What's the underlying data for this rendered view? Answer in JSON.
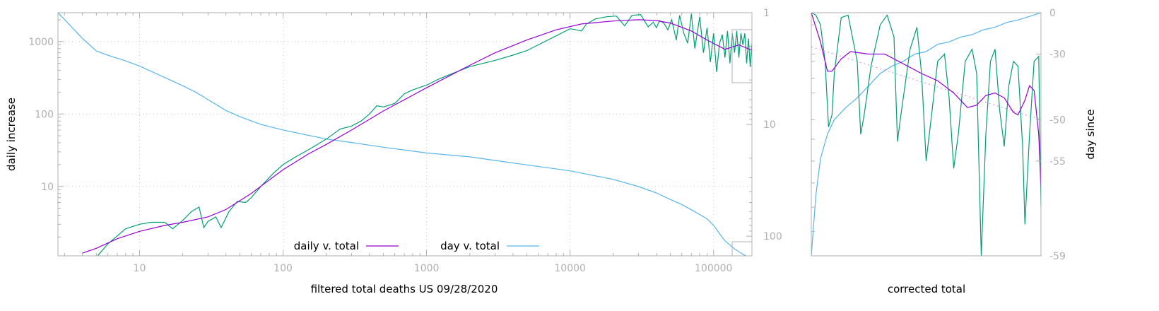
{
  "chart_data": [
    {
      "type": "line",
      "xlabel": "filtered total deaths US 09/28/2020",
      "ylabel": "daily increase",
      "y2label": "",
      "x_scale": "log",
      "y_scale": "log",
      "y2_scale": "log-reversed",
      "xlim": [
        2.7,
        185000
      ],
      "ylim": [
        1.1,
        2500
      ],
      "y2lim": [
        1,
        150
      ],
      "x_ticks": [
        "10",
        "100",
        "1000",
        "10000",
        "100000"
      ],
      "y_ticks": [
        "10",
        "100",
        "1000"
      ],
      "y2_ticks": [
        "1",
        "10",
        "100"
      ],
      "grid": true,
      "legend_position": "bottom-center",
      "series": [
        {
          "name": "daily v. total",
          "color": "#9400d3",
          "axis": "left",
          "x": [
            4,
            5,
            7,
            10,
            15,
            20,
            30,
            40,
            60,
            100,
            150,
            200,
            300,
            500,
            1000,
            2000,
            3000,
            5000,
            8000,
            12000,
            20000,
            30000,
            40000,
            50000,
            70000,
            90000,
            120000,
            150000,
            185000
          ],
          "y": [
            1.2,
            1.4,
            1.9,
            2.4,
            2.9,
            3.2,
            3.8,
            4.8,
            8,
            17,
            28,
            38,
            60,
            110,
            230,
            470,
            700,
            1050,
            1450,
            1750,
            1920,
            2000,
            1950,
            1800,
            1400,
            1050,
            780,
            900,
            760
          ]
        },
        {
          "name": "",
          "color": "#009e73",
          "axis": "left",
          "x": [
            4,
            5,
            6,
            8,
            10,
            12,
            15,
            17,
            20,
            23,
            26,
            28,
            30,
            34,
            37,
            42,
            48,
            55,
            60,
            70,
            85,
            100,
            120,
            150,
            200,
            250,
            300,
            350,
            400,
            450,
            500,
            600,
            700,
            800,
            1000,
            1200,
            1500,
            2000,
            3000,
            4000,
            5000,
            6000,
            7000,
            8000,
            9000,
            10000,
            11000,
            12000,
            13000,
            15000,
            18000,
            21000,
            24000,
            27000,
            31000,
            35000,
            38000,
            40000,
            42000,
            45000,
            48000,
            51000,
            55000,
            58000,
            62000,
            66000,
            70000,
            74000,
            80000,
            85000,
            90000,
            95000,
            100000,
            105000,
            110000,
            115000,
            120000,
            125000,
            130000,
            135000,
            140000,
            145000,
            150000,
            155000,
            160000,
            165000,
            170000,
            175000,
            180000,
            185000
          ],
          "y": [
            1.1,
            1.05,
            1.6,
            2.6,
            3,
            3.2,
            3.2,
            2.6,
            3.4,
            4.5,
            5.2,
            2.7,
            3.3,
            3.8,
            2.7,
            4.5,
            6.2,
            6,
            7,
            10,
            15,
            20,
            25,
            32,
            45,
            62,
            68,
            80,
            100,
            130,
            125,
            140,
            190,
            215,
            250,
            300,
            360,
            450,
            550,
            650,
            750,
            900,
            1050,
            1200,
            1350,
            1500,
            1450,
            1400,
            1750,
            2050,
            2200,
            2250,
            1650,
            2300,
            2350,
            1600,
            1850,
            1550,
            1950,
            1800,
            1450,
            2000,
            1050,
            2300,
            1300,
            950,
            2400,
            800,
            2200,
            700,
            1550,
            520,
            1300,
            380,
            950,
            1250,
            600,
            1400,
            500,
            1300,
            700,
            1400,
            600,
            1300,
            900,
            1300,
            500,
            1100,
            450,
            950
          ]
        },
        {
          "name": "day v. total",
          "color": "#56b4e9",
          "axis": "right",
          "x": [
            2.7,
            3,
            4,
            5,
            6,
            8,
            10,
            15,
            20,
            25,
            30,
            40,
            50,
            70,
            100,
            200,
            300,
            500,
            1000,
            2000,
            3000,
            5000,
            10000,
            20000,
            30000,
            40000,
            50000,
            60000,
            70000,
            80000,
            90000,
            100000,
            110000,
            120000,
            140000,
            160000,
            185000
          ],
          "y": [
            1,
            1.15,
            1.7,
            2.2,
            2.4,
            2.7,
            3,
            3.8,
            4.5,
            5.2,
            6,
            7.5,
            8.5,
            10,
            11.2,
            13.5,
            14.5,
            16,
            18,
            19.5,
            21,
            23,
            26,
            31,
            36,
            41,
            47,
            52,
            58,
            64,
            70,
            80,
            95,
            110,
            130,
            145,
            160
          ]
        }
      ]
    },
    {
      "type": "line",
      "xlabel": "corrected total",
      "ylabel": "",
      "y2label": "day since",
      "x_ticks": [],
      "y2_ticks": [
        "0",
        "-30",
        "-50",
        "-55",
        "-59"
      ],
      "y2_tick_pos": [
        0,
        0.17,
        0.44,
        0.61,
        1.0
      ],
      "series": [
        {
          "name": "",
          "color": "#9400d3",
          "points": [
            [
              0,
              0.0
            ],
            [
              0.04,
              0.12
            ],
            [
              0.07,
              0.24
            ],
            [
              0.09,
              0.24
            ],
            [
              0.13,
              0.19
            ],
            [
              0.17,
              0.16
            ],
            [
              0.25,
              0.17
            ],
            [
              0.32,
              0.17
            ],
            [
              0.4,
              0.21
            ],
            [
              0.48,
              0.25
            ],
            [
              0.55,
              0.28
            ],
            [
              0.62,
              0.33
            ],
            [
              0.68,
              0.39
            ],
            [
              0.72,
              0.38
            ],
            [
              0.76,
              0.34
            ],
            [
              0.8,
              0.33
            ],
            [
              0.84,
              0.35
            ],
            [
              0.88,
              0.41
            ],
            [
              0.9,
              0.42
            ],
            [
              0.93,
              0.36
            ],
            [
              0.95,
              0.3
            ],
            [
              0.97,
              0.32
            ],
            [
              0.99,
              0.5
            ],
            [
              1.0,
              0.72
            ]
          ]
        },
        {
          "name": "",
          "color": "#cc88ee",
          "dashed": true,
          "points": [
            [
              0,
              0.14
            ],
            [
              1.0,
              0.44
            ]
          ]
        },
        {
          "name": "",
          "color": "#009e73",
          "points": [
            [
              0,
              0.0
            ],
            [
              0.02,
              0.01
            ],
            [
              0.04,
              0.05
            ],
            [
              0.06,
              0.2
            ],
            [
              0.075,
              0.47
            ],
            [
              0.09,
              0.42
            ],
            [
              0.1,
              0.25
            ],
            [
              0.13,
              0.02
            ],
            [
              0.16,
              0.01
            ],
            [
              0.2,
              0.2
            ],
            [
              0.215,
              0.5
            ],
            [
              0.23,
              0.42
            ],
            [
              0.26,
              0.22
            ],
            [
              0.3,
              0.05
            ],
            [
              0.33,
              0.01
            ],
            [
              0.36,
              0.1
            ],
            [
              0.375,
              0.53
            ],
            [
              0.39,
              0.42
            ],
            [
              0.43,
              0.15
            ],
            [
              0.46,
              0.06
            ],
            [
              0.48,
              0.25
            ],
            [
              0.5,
              0.61
            ],
            [
              0.52,
              0.45
            ],
            [
              0.55,
              0.2
            ],
            [
              0.58,
              0.17
            ],
            [
              0.6,
              0.35
            ],
            [
              0.62,
              0.64
            ],
            [
              0.64,
              0.5
            ],
            [
              0.67,
              0.2
            ],
            [
              0.7,
              0.15
            ],
            [
              0.72,
              0.25
            ],
            [
              0.74,
              1.0
            ],
            [
              0.76,
              0.5
            ],
            [
              0.78,
              0.2
            ],
            [
              0.8,
              0.15
            ],
            [
              0.82,
              0.4
            ],
            [
              0.84,
              0.55
            ],
            [
              0.86,
              0.3
            ],
            [
              0.88,
              0.2
            ],
            [
              0.9,
              0.22
            ],
            [
              0.92,
              0.55
            ],
            [
              0.93,
              0.87
            ],
            [
              0.95,
              0.5
            ],
            [
              0.97,
              0.2
            ],
            [
              0.99,
              0.18
            ],
            [
              1.0,
              0.8
            ]
          ]
        },
        {
          "name": "",
          "color": "#56b4e9",
          "points": [
            [
              0,
              1.0
            ],
            [
              0.02,
              0.75
            ],
            [
              0.04,
              0.6
            ],
            [
              0.07,
              0.5
            ],
            [
              0.1,
              0.44
            ],
            [
              0.15,
              0.39
            ],
            [
              0.2,
              0.35
            ],
            [
              0.25,
              0.3
            ],
            [
              0.3,
              0.25
            ],
            [
              0.35,
              0.22
            ],
            [
              0.4,
              0.2
            ],
            [
              0.45,
              0.17
            ],
            [
              0.5,
              0.16
            ],
            [
              0.55,
              0.13
            ],
            [
              0.6,
              0.12
            ],
            [
              0.65,
              0.1
            ],
            [
              0.7,
              0.09
            ],
            [
              0.75,
              0.07
            ],
            [
              0.8,
              0.06
            ],
            [
              0.85,
              0.04
            ],
            [
              0.9,
              0.03
            ],
            [
              0.95,
              0.015
            ],
            [
              1.0,
              0.0
            ]
          ]
        }
      ]
    }
  ]
}
